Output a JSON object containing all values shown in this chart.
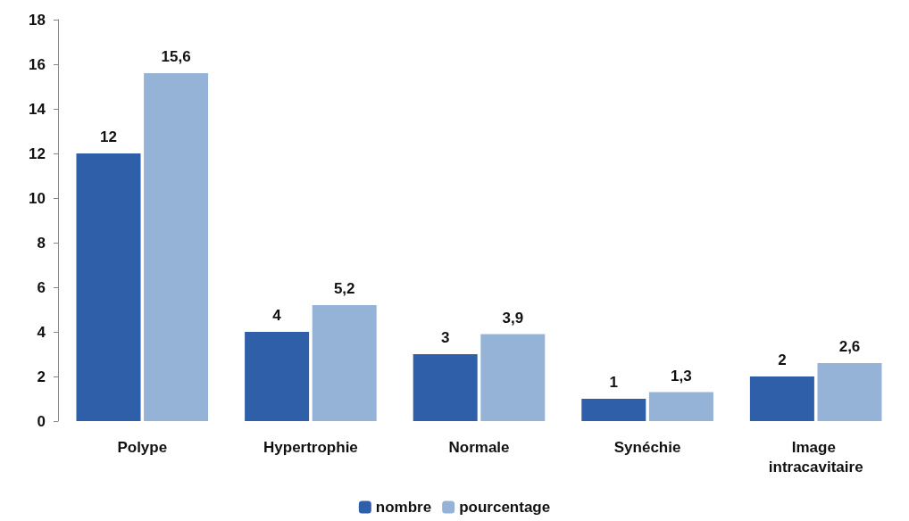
{
  "chart_data": {
    "type": "bar",
    "categories": [
      "Polype",
      "Hypertrophie",
      "Normale",
      "Synéchie",
      "Image intracavitaire"
    ],
    "series": [
      {
        "name": "nombre",
        "color": "#2e5fa8",
        "values": [
          12,
          4,
          3,
          1,
          2
        ],
        "value_labels": [
          "12",
          "4",
          "3",
          "1",
          "2"
        ]
      },
      {
        "name": "pourcentage",
        "color": "#95b3d7",
        "values": [
          15.6,
          5.2,
          3.9,
          1.3,
          2.6
        ],
        "value_labels": [
          "15,6",
          "5,2",
          "3,9",
          "1,3",
          "2,6"
        ]
      }
    ],
    "ylim": [
      0,
      18
    ],
    "yticks": [
      0,
      2,
      4,
      6,
      8,
      10,
      12,
      14,
      16,
      18
    ],
    "grid": false,
    "legend": "bottom"
  }
}
